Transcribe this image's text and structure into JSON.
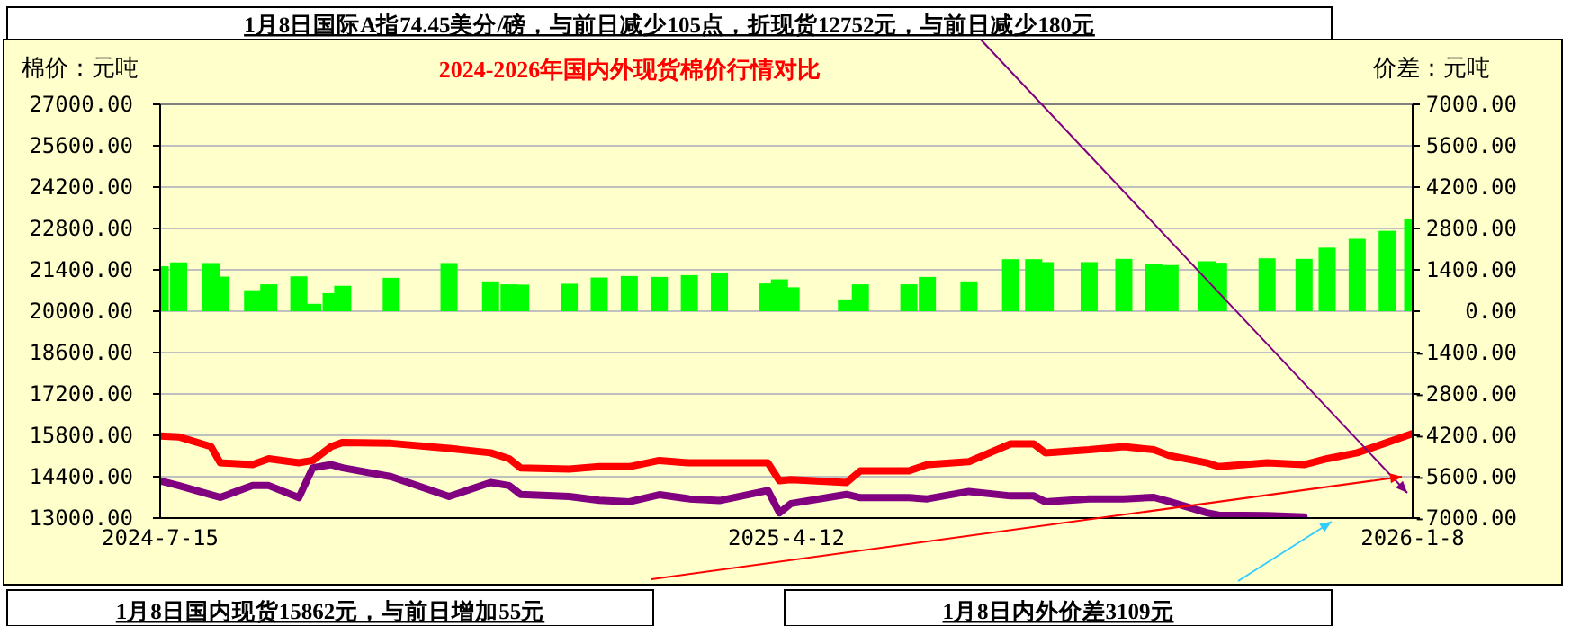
{
  "chart_data": {
    "type": "line",
    "title": "2024-2026年国内外现货棉价行情对比",
    "ylabel": "棉价：元吨",
    "y2label": "价差：元吨",
    "annotations": [
      "1月8日国际A指74.45美分/磅，与前日减少105点，折现货12752元，与前日减少180元",
      "1月8日国内现货15862元，与前日增加55元",
      "1月8日内外价差3109元"
    ],
    "x": [
      "2024-07-15",
      "2024-07-23",
      "2024-08-06",
      "2024-08-10",
      "2024-08-24",
      "2024-08-31",
      "2024-09-13",
      "2024-09-19",
      "2024-09-27",
      "2024-10-02",
      "2024-10-23",
      "2024-11-17",
      "2024-12-05",
      "2024-12-13",
      "2024-12-18",
      "2025-01-08",
      "2025-01-21",
      "2025-02-03",
      "2025-02-16",
      "2025-03-01",
      "2025-03-14",
      "2025-04-04",
      "2025-04-09",
      "2025-04-14",
      "2025-05-08",
      "2025-05-14",
      "2025-06-04",
      "2025-06-12",
      "2025-06-30",
      "2025-07-18",
      "2025-07-28",
      "2025-08-02",
      "2025-08-21",
      "2025-09-05",
      "2025-09-18",
      "2025-09-25",
      "2025-10-11",
      "2025-10-16",
      "2025-11-06",
      "2025-11-22",
      "2025-12-02",
      "2025-12-15",
      "2025-12-28",
      "2026-01-08"
    ],
    "series": [
      {
        "type": "bar",
        "axis": "y2",
        "color": "#00ff00",
        "values": [
          1520,
          1650,
          1630,
          1170,
          710,
          910,
          1180,
          250,
          610,
          860,
          1130,
          1630,
          1010,
          910,
          900,
          930,
          1140,
          1190,
          1160,
          1220,
          1280,
          940,
          1080,
          810,
          400,
          910,
          910,
          1160,
          1010,
          1760,
          1760,
          1660,
          1660,
          1770,
          1610,
          1560,
          1690,
          1640,
          1790,
          1770,
          2150,
          2450,
          2720,
          3109
        ]
      },
      {
        "color": "#ff0000",
        "values": [
          15780,
          15750,
          15420,
          14870,
          14810,
          15010,
          14870,
          14950,
          15420,
          15560,
          15530,
          15360,
          15210,
          15010,
          14700,
          14660,
          14740,
          14740,
          14950,
          14870,
          14870,
          14870,
          14260,
          14300,
          14200,
          14600,
          14600,
          14810,
          14910,
          15510,
          15510,
          15210,
          15310,
          15420,
          15310,
          15110,
          14870,
          14740,
          14870,
          14810,
          15010,
          15210,
          15560,
          15862
        ]
      },
      {
        "color": "#800080",
        "values": [
          14260,
          14100,
          13790,
          13700,
          14100,
          14100,
          13690,
          14700,
          14810,
          14700,
          14400,
          13730,
          14200,
          14100,
          13800,
          13730,
          13600,
          13550,
          13790,
          13650,
          13590,
          13930,
          13180,
          13490,
          13800,
          13690,
          13690,
          13650,
          13900,
          13750,
          13750,
          13550,
          13650,
          13650,
          13700,
          13550,
          13180,
          13100,
          13080,
          13040,
          null,
          null,
          null,
          null
        ]
      }
    ],
    "xlim": [
      "2024-07-15",
      "2026-01-08"
    ],
    "xticks": [
      {
        "value": "2024-07-15",
        "label": "2024-7-15"
      },
      {
        "value": "2025-04-12",
        "label": "2025-4-12"
      },
      {
        "value": "2026-01-08",
        "label": "2026-1-8"
      }
    ],
    "ylim": [
      13000,
      27000
    ],
    "yticks": [
      {
        "value": 13000,
        "label": "13000.00"
      },
      {
        "value": 14400,
        "label": "14400.00"
      },
      {
        "value": 15800,
        "label": "15800.00"
      },
      {
        "value": 17200,
        "label": "17200.00"
      },
      {
        "value": 18600,
        "label": "18600.00"
      },
      {
        "value": 20000,
        "label": "20000.00"
      },
      {
        "value": 21400,
        "label": "21400.00"
      },
      {
        "value": 22800,
        "label": "22800.00"
      },
      {
        "value": 24200,
        "label": "24200.00"
      },
      {
        "value": 25600,
        "label": "25600.00"
      },
      {
        "value": 27000,
        "label": "27000.00"
      }
    ],
    "y2lim": [
      -7000,
      7000
    ],
    "y2ticks": [
      {
        "value": -7000,
        "label": "-7000.00"
      },
      {
        "value": -5600,
        "label": "-5600.00"
      },
      {
        "value": -4200,
        "label": "-4200.00"
      },
      {
        "value": -2800,
        "label": "-2800.00"
      },
      {
        "value": -1400,
        "label": "-1400.00"
      },
      {
        "value": 0,
        "label": "0.00"
      },
      {
        "value": 1400,
        "label": "1400.00"
      },
      {
        "value": 2800,
        "label": "2800.00"
      },
      {
        "value": 4200,
        "label": "4200.00"
      },
      {
        "value": 5600,
        "label": "5600.00"
      },
      {
        "value": 7000,
        "label": "7000.00"
      }
    ],
    "grid": "y",
    "marker": "none",
    "line_style": "solid"
  }
}
